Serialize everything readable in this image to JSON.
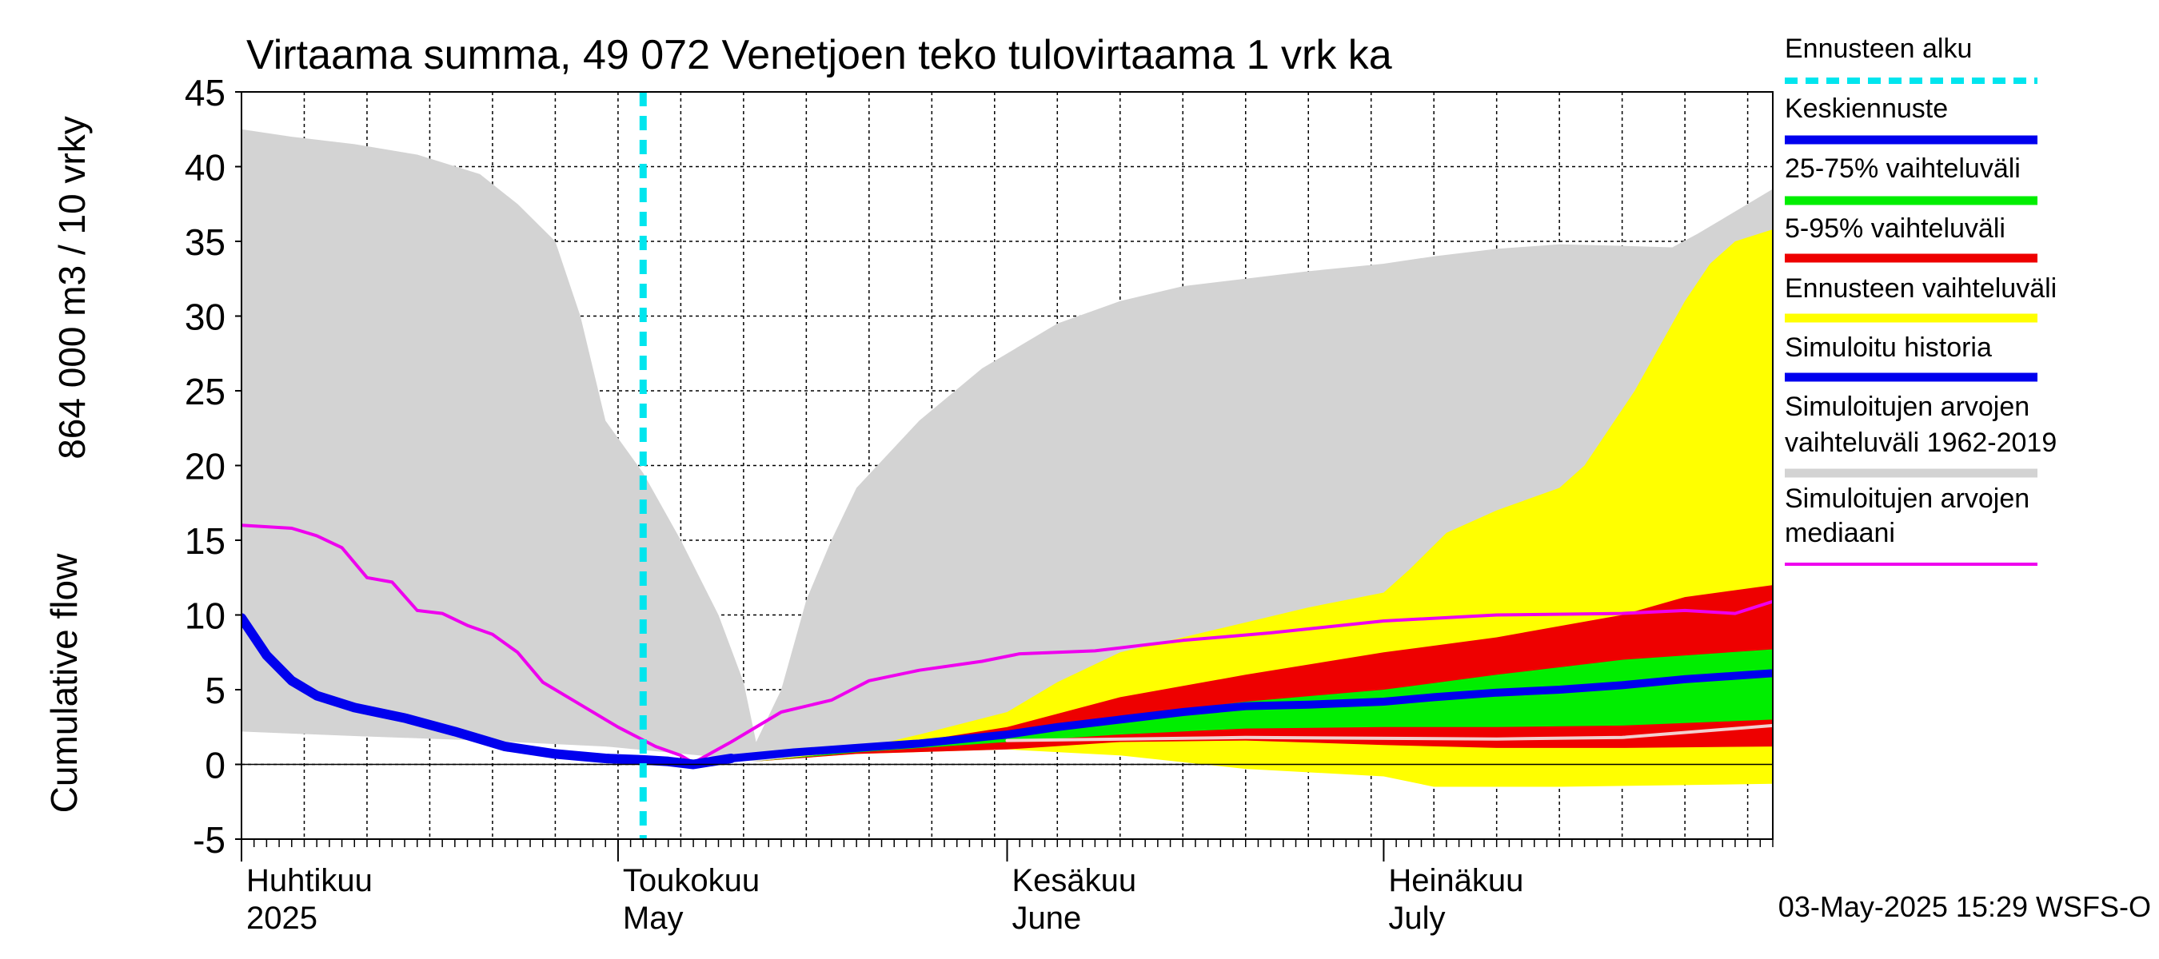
{
  "chart_data": {
    "type": "area",
    "title": "Virtaama summa, 49 072 Venetjoen teko tulovirtaama 1 vrk ka",
    "ylabel_lines": [
      "864 000 m3 / 10 vrky",
      "Cumulative flow"
    ],
    "ylim": [
      -5,
      45
    ],
    "yticks": [
      -5,
      0,
      5,
      10,
      15,
      20,
      25,
      30,
      35,
      40,
      45
    ],
    "x_start": "2025-04-01",
    "x_end": "2025-08-01",
    "forecast_start": "2025-05-03",
    "month_labels": [
      {
        "date": "2025-04-01",
        "line1": "Huhtikuu",
        "line2": "2025"
      },
      {
        "date": "2025-05-01",
        "line1": "Toukokuu",
        "line2": "May"
      },
      {
        "date": "2025-06-01",
        "line1": "Kesäkuu",
        "line2": "June"
      },
      {
        "date": "2025-07-01",
        "line1": "Heinäkuu",
        "line2": "July"
      }
    ],
    "footer": "03-May-2025 15:29 WSFS-O",
    "legend": [
      {
        "label": "Ennusteen alku",
        "color": "#00e5ee",
        "style": "dashed"
      },
      {
        "label": "Keskiennuste",
        "color": "#0000ee",
        "style": "solid"
      },
      {
        "label": "25-75% vaihteluväli",
        "color": "#00ee00",
        "style": "solid"
      },
      {
        "label": "5-95% vaihteluväli",
        "color": "#ee0000",
        "style": "solid"
      },
      {
        "label": "Ennusteen vaihteluväli",
        "color": "#ffff00",
        "style": "solid"
      },
      {
        "label": "Simuloitu historia",
        "color": "#0000ee",
        "style": "solid"
      },
      {
        "label": "Simuloitujen arvojen vaihteluväli 1962-2019",
        "lines": [
          "Simuloitujen arvojen",
          "vaihteluväli 1962-2019"
        ],
        "color": "#d3d3d3",
        "style": "solid"
      },
      {
        "label": "Simuloitujen arvojen mediaani",
        "lines": [
          "Simuloitujen arvojen",
          "mediaani"
        ],
        "color": "#ee00ee",
        "style": "solid"
      }
    ],
    "series": {
      "hist_range": {
        "color": "#d3d3d3",
        "upper": [
          [
            "2025-04-01",
            42.5
          ],
          [
            "2025-04-05",
            42
          ],
          [
            "2025-04-10",
            41.5
          ],
          [
            "2025-04-15",
            40.8
          ],
          [
            "2025-04-20",
            39.5
          ],
          [
            "2025-04-23",
            37.5
          ],
          [
            "2025-04-26",
            35
          ],
          [
            "2025-04-28",
            30
          ],
          [
            "2025-04-30",
            23
          ],
          [
            "2025-05-03",
            19.5
          ],
          [
            "2025-05-06",
            15
          ],
          [
            "2025-05-09",
            10
          ],
          [
            "2025-05-11",
            5.5
          ],
          [
            "2025-05-12",
            1.5
          ],
          [
            "2025-05-14",
            5
          ],
          [
            "2025-05-16",
            11
          ],
          [
            "2025-05-18",
            15
          ],
          [
            "2025-05-20",
            18.5
          ],
          [
            "2025-05-25",
            23
          ],
          [
            "2025-05-30",
            26.5
          ],
          [
            "2025-06-05",
            29.5
          ],
          [
            "2025-06-10",
            31
          ],
          [
            "2025-06-15",
            32
          ],
          [
            "2025-06-20",
            32.5
          ],
          [
            "2025-06-25",
            33
          ],
          [
            "2025-07-01",
            33.5
          ],
          [
            "2025-07-05",
            34
          ],
          [
            "2025-07-10",
            34.5
          ],
          [
            "2025-07-15",
            34.8
          ],
          [
            "2025-07-20",
            34.7
          ],
          [
            "2025-07-24",
            34.6
          ],
          [
            "2025-07-26",
            35.5
          ],
          [
            "2025-07-28",
            36.5
          ],
          [
            "2025-08-01",
            38.5
          ]
        ],
        "lower": [
          [
            "2025-04-01",
            2.2
          ],
          [
            "2025-04-10",
            1.9
          ],
          [
            "2025-04-20",
            1.6
          ],
          [
            "2025-04-30",
            1.2
          ],
          [
            "2025-05-05",
            0.8
          ],
          [
            "2025-05-10",
            0.4
          ],
          [
            "2025-05-12",
            0.2
          ],
          [
            "2025-05-20",
            0.8
          ],
          [
            "2025-06-01",
            1.2
          ],
          [
            "2025-06-15",
            1.6
          ],
          [
            "2025-07-01",
            1.8
          ],
          [
            "2025-07-15",
            1.9
          ],
          [
            "2025-08-01",
            2.0
          ]
        ]
      },
      "forecast_range": {
        "color": "#ffff00",
        "upper": [
          [
            "2025-05-12",
            0.2
          ],
          [
            "2025-05-20",
            1.0
          ],
          [
            "2025-05-25",
            2.0
          ],
          [
            "2025-06-01",
            3.5
          ],
          [
            "2025-06-05",
            5.5
          ],
          [
            "2025-06-10",
            7.5
          ],
          [
            "2025-06-15",
            8.5
          ],
          [
            "2025-06-20",
            9.5
          ],
          [
            "2025-06-25",
            10.5
          ],
          [
            "2025-07-01",
            11.5
          ],
          [
            "2025-07-03",
            13
          ],
          [
            "2025-07-06",
            15.5
          ],
          [
            "2025-07-10",
            17
          ],
          [
            "2025-07-15",
            18.5
          ],
          [
            "2025-07-17",
            20
          ],
          [
            "2025-07-19",
            22.5
          ],
          [
            "2025-07-21",
            25
          ],
          [
            "2025-07-23",
            28
          ],
          [
            "2025-07-25",
            31
          ],
          [
            "2025-07-27",
            33.5
          ],
          [
            "2025-07-29",
            35
          ],
          [
            "2025-08-01",
            35.8
          ]
        ],
        "lower": [
          [
            "2025-05-12",
            0.2
          ],
          [
            "2025-05-20",
            0.7
          ],
          [
            "2025-06-01",
            1.0
          ],
          [
            "2025-06-10",
            0.6
          ],
          [
            "2025-06-20",
            -0.3
          ],
          [
            "2025-07-01",
            -0.8
          ],
          [
            "2025-07-05",
            -1.5
          ],
          [
            "2025-07-15",
            -1.5
          ],
          [
            "2025-08-01",
            -1.3
          ]
        ]
      },
      "p5_95": {
        "color": "#ee0000",
        "upper": [
          [
            "2025-05-12",
            0.2
          ],
          [
            "2025-05-20",
            0.9
          ],
          [
            "2025-06-01",
            2.5
          ],
          [
            "2025-06-10",
            4.5
          ],
          [
            "2025-06-20",
            6
          ],
          [
            "2025-07-01",
            7.5
          ],
          [
            "2025-07-10",
            8.5
          ],
          [
            "2025-07-20",
            10
          ],
          [
            "2025-07-25",
            11.2
          ],
          [
            "2025-08-01",
            12.0
          ]
        ],
        "lower": [
          [
            "2025-05-12",
            0.2
          ],
          [
            "2025-05-20",
            0.7
          ],
          [
            "2025-06-01",
            1.0
          ],
          [
            "2025-06-10",
            1.5
          ],
          [
            "2025-06-20",
            1.6
          ],
          [
            "2025-07-01",
            1.3
          ],
          [
            "2025-07-10",
            1.1
          ],
          [
            "2025-07-20",
            1.1
          ],
          [
            "2025-08-01",
            1.2
          ]
        ]
      },
      "p25_75": {
        "color": "#00ee00",
        "upper": [
          [
            "2025-05-12",
            0.2
          ],
          [
            "2025-05-20",
            0.9
          ],
          [
            "2025-06-01",
            2.0
          ],
          [
            "2025-06-10",
            3.2
          ],
          [
            "2025-06-20",
            4.2
          ],
          [
            "2025-07-01",
            5.0
          ],
          [
            "2025-07-10",
            6.0
          ],
          [
            "2025-07-20",
            7.0
          ],
          [
            "2025-08-01",
            7.7
          ]
        ],
        "lower": [
          [
            "2025-05-12",
            0.2
          ],
          [
            "2025-05-20",
            0.8
          ],
          [
            "2025-06-01",
            1.5
          ],
          [
            "2025-06-10",
            2.0
          ],
          [
            "2025-06-20",
            2.4
          ],
          [
            "2025-07-01",
            2.5
          ],
          [
            "2025-07-10",
            2.5
          ],
          [
            "2025-07-20",
            2.6
          ],
          [
            "2025-08-01",
            3.0
          ]
        ]
      },
      "p5_white_line": {
        "color": "#f2d0d0",
        "points": [
          [
            "2025-06-01",
            1.6
          ],
          [
            "2025-06-20",
            1.8
          ],
          [
            "2025-07-10",
            1.7
          ],
          [
            "2025-07-20",
            1.8
          ],
          [
            "2025-08-01",
            2.6
          ]
        ]
      },
      "median": {
        "color": "#ee00ee",
        "points": [
          [
            "2025-04-01",
            16
          ],
          [
            "2025-04-05",
            15.8
          ],
          [
            "2025-04-07",
            15.3
          ],
          [
            "2025-04-09",
            14.5
          ],
          [
            "2025-04-11",
            12.5
          ],
          [
            "2025-04-13",
            12.2
          ],
          [
            "2025-04-15",
            10.3
          ],
          [
            "2025-04-17",
            10.1
          ],
          [
            "2025-04-19",
            9.3
          ],
          [
            "2025-04-21",
            8.7
          ],
          [
            "2025-04-23",
            7.5
          ],
          [
            "2025-04-25",
            5.5
          ],
          [
            "2025-04-28",
            4.0
          ],
          [
            "2025-05-01",
            2.5
          ],
          [
            "2025-05-04",
            1.2
          ],
          [
            "2025-05-06",
            0.6
          ],
          [
            "2025-05-07",
            0.1
          ],
          [
            "2025-05-10",
            1.5
          ],
          [
            "2025-05-14",
            3.5
          ],
          [
            "2025-05-18",
            4.3
          ],
          [
            "2025-05-21",
            5.6
          ],
          [
            "2025-05-25",
            6.3
          ],
          [
            "2025-05-30",
            6.9
          ],
          [
            "2025-06-02",
            7.4
          ],
          [
            "2025-06-08",
            7.6
          ],
          [
            "2025-06-15",
            8.3
          ],
          [
            "2025-06-22",
            8.8
          ],
          [
            "2025-07-01",
            9.6
          ],
          [
            "2025-07-10",
            10.0
          ],
          [
            "2025-07-20",
            10.1
          ],
          [
            "2025-07-25",
            10.3
          ],
          [
            "2025-07-29",
            10.1
          ],
          [
            "2025-08-01",
            10.9
          ]
        ]
      },
      "simulated_history": {
        "color": "#0000ee",
        "points": [
          [
            "2025-04-01",
            9.8
          ],
          [
            "2025-04-03",
            7.3
          ],
          [
            "2025-04-05",
            5.6
          ],
          [
            "2025-04-07",
            4.6
          ],
          [
            "2025-04-10",
            3.8
          ],
          [
            "2025-04-14",
            3.1
          ],
          [
            "2025-04-18",
            2.2
          ],
          [
            "2025-04-22",
            1.2
          ],
          [
            "2025-04-26",
            0.7
          ],
          [
            "2025-04-30",
            0.4
          ],
          [
            "2025-05-03",
            0.3
          ],
          [
            "2025-05-05",
            0.2
          ],
          [
            "2025-05-07",
            0.0
          ],
          [
            "2025-05-10",
            0.4
          ]
        ]
      },
      "mean_forecast": {
        "color": "#0000ee",
        "points": [
          [
            "2025-05-10",
            0.4
          ],
          [
            "2025-05-15",
            0.8
          ],
          [
            "2025-05-20",
            1.1
          ],
          [
            "2025-05-25",
            1.4
          ],
          [
            "2025-06-01",
            2.0
          ],
          [
            "2025-06-05",
            2.5
          ],
          [
            "2025-06-10",
            3.0
          ],
          [
            "2025-06-15",
            3.5
          ],
          [
            "2025-06-20",
            3.9
          ],
          [
            "2025-06-25",
            4.0
          ],
          [
            "2025-07-01",
            4.2
          ],
          [
            "2025-07-05",
            4.5
          ],
          [
            "2025-07-10",
            4.8
          ],
          [
            "2025-07-15",
            5.0
          ],
          [
            "2025-07-20",
            5.3
          ],
          [
            "2025-07-25",
            5.7
          ],
          [
            "2025-08-01",
            6.1
          ]
        ]
      }
    }
  }
}
